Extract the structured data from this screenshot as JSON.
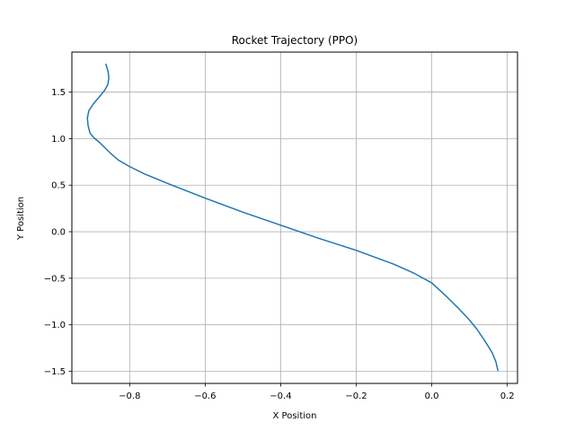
{
  "chart_data": {
    "type": "line",
    "title": "Rocket Trajectory (PPO)",
    "xlabel": "X Position",
    "ylabel": "Y Position",
    "xlim": [
      -0.953,
      0.227
    ],
    "ylim": [
      -1.63,
      1.93
    ],
    "grid": true,
    "line_color": "#1f77b4",
    "xticks": [
      {
        "value": -0.8,
        "label": "−0.8"
      },
      {
        "value": -0.6,
        "label": "−0.6"
      },
      {
        "value": -0.4,
        "label": "−0.4"
      },
      {
        "value": -0.2,
        "label": "−0.2"
      },
      {
        "value": 0.0,
        "label": "0.0"
      },
      {
        "value": 0.2,
        "label": "0.2"
      }
    ],
    "yticks": [
      {
        "value": -1.5,
        "label": "−1.5"
      },
      {
        "value": -1.0,
        "label": "−1.0"
      },
      {
        "value": -0.5,
        "label": "−0.5"
      },
      {
        "value": 0.0,
        "label": "0.0"
      },
      {
        "value": 0.5,
        "label": "0.5"
      },
      {
        "value": 1.0,
        "label": "1.0"
      },
      {
        "value": 1.5,
        "label": "1.5"
      }
    ],
    "series": [
      {
        "x": [
          -0.863,
          -0.857,
          -0.855,
          -0.858,
          -0.866,
          -0.88,
          -0.895,
          -0.908,
          -0.912,
          -0.91,
          -0.905,
          -0.895,
          -0.88,
          -0.865,
          -0.85,
          -0.83,
          -0.8,
          -0.76,
          -0.7,
          -0.6,
          -0.5,
          -0.4,
          -0.3,
          -0.2,
          -0.1,
          -0.05,
          0.0,
          0.04,
          0.07,
          0.1,
          0.12,
          0.14,
          0.16,
          0.17,
          0.175
        ],
        "y": [
          1.8,
          1.72,
          1.65,
          1.58,
          1.52,
          1.45,
          1.38,
          1.3,
          1.22,
          1.14,
          1.06,
          1.01,
          0.96,
          0.9,
          0.84,
          0.77,
          0.7,
          0.62,
          0.52,
          0.36,
          0.21,
          0.07,
          -0.07,
          -0.2,
          -0.35,
          -0.44,
          -0.55,
          -0.7,
          -0.82,
          -0.95,
          -1.05,
          -1.17,
          -1.3,
          -1.4,
          -1.49
        ]
      }
    ]
  }
}
